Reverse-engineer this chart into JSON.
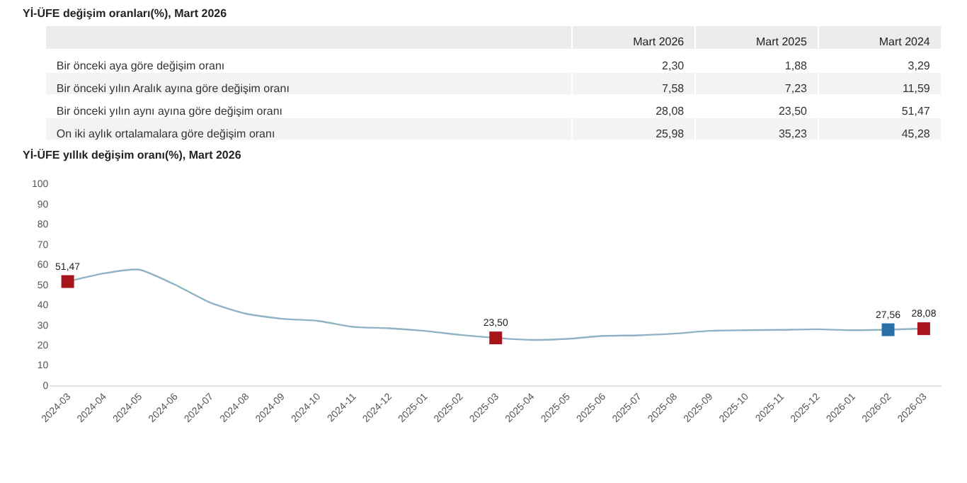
{
  "chart_data": [
    {
      "type": "other",
      "title": "Yİ-ÜFE değişim oranları(%), Mart 2026",
      "categories": [
        "Bir önceki aya göre değişim oranı",
        "Bir önceki yılın Aralık ayına göre değişim oranı",
        "Bir önceki yılın aynı ayına göre değişim oranı",
        "On iki aylık ortalamalara göre değişim oranı"
      ],
      "series": [
        {
          "name": "Mart 2026",
          "values": [
            2.3,
            7.58,
            28.08,
            25.98
          ],
          "value_labels": [
            "2,30",
            "7,58",
            "28,08",
            "25,98"
          ]
        },
        {
          "name": "Mart 2025",
          "values": [
            1.88,
            7.23,
            23.5,
            35.23
          ],
          "value_labels": [
            "1,88",
            "7,23",
            "23,50",
            "35,23"
          ]
        },
        {
          "name": "Mart 2024",
          "values": [
            3.29,
            11.59,
            51.47,
            45.28
          ],
          "value_labels": [
            "3,29",
            "11,59",
            "51,47",
            "45,28"
          ]
        }
      ]
    },
    {
      "type": "line",
      "title": "Yİ-ÜFE yıllık değişim oranı(%), Mart 2026",
      "categories": [
        "2024-03",
        "2024-04",
        "2024-05",
        "2024-06",
        "2024-07",
        "2024-08",
        "2024-09",
        "2024-10",
        "2024-11",
        "2024-12",
        "2025-01",
        "2025-02",
        "2025-03",
        "2025-04",
        "2025-05",
        "2025-06",
        "2025-07",
        "2025-08",
        "2025-09",
        "2025-10",
        "2025-11",
        "2025-12",
        "2026-01",
        "2026-02",
        "2026-03"
      ],
      "ylim": [
        0,
        100
      ],
      "yticks": [
        0,
        10,
        20,
        30,
        40,
        50,
        60,
        70,
        80,
        90,
        100
      ],
      "marker": "none",
      "series": [
        {
          "color": "#8fb3c4",
          "values": [
            51.5,
            55.5,
            57.4,
            50,
            41,
            35.5,
            33,
            32,
            29,
            28.3,
            27,
            25,
            23.5,
            22.5,
            23,
            24.5,
            24.8,
            25.6,
            27,
            27.3,
            27.5,
            27.8,
            27.3,
            27.6,
            28.1
          ]
        },
        {
          "type": "scatter",
          "marker": "square",
          "values": [
            51.47,
            null,
            null,
            null,
            null,
            null,
            null,
            null,
            null,
            null,
            null,
            null,
            23.5,
            null,
            null,
            null,
            null,
            null,
            null,
            null,
            null,
            null,
            null,
            27.56,
            28.08
          ],
          "colors": [
            "#a8141c",
            null,
            null,
            null,
            null,
            null,
            null,
            null,
            null,
            null,
            null,
            null,
            "#a8141c",
            null,
            null,
            null,
            null,
            null,
            null,
            null,
            null,
            null,
            null,
            "#2a6fa8",
            "#a8141c"
          ],
          "value_labels": [
            "51,47",
            null,
            null,
            null,
            null,
            null,
            null,
            null,
            null,
            null,
            null,
            null,
            "23,50",
            null,
            null,
            null,
            null,
            null,
            null,
            null,
            null,
            null,
            null,
            "27,56",
            "28,08"
          ]
        }
      ]
    }
  ]
}
